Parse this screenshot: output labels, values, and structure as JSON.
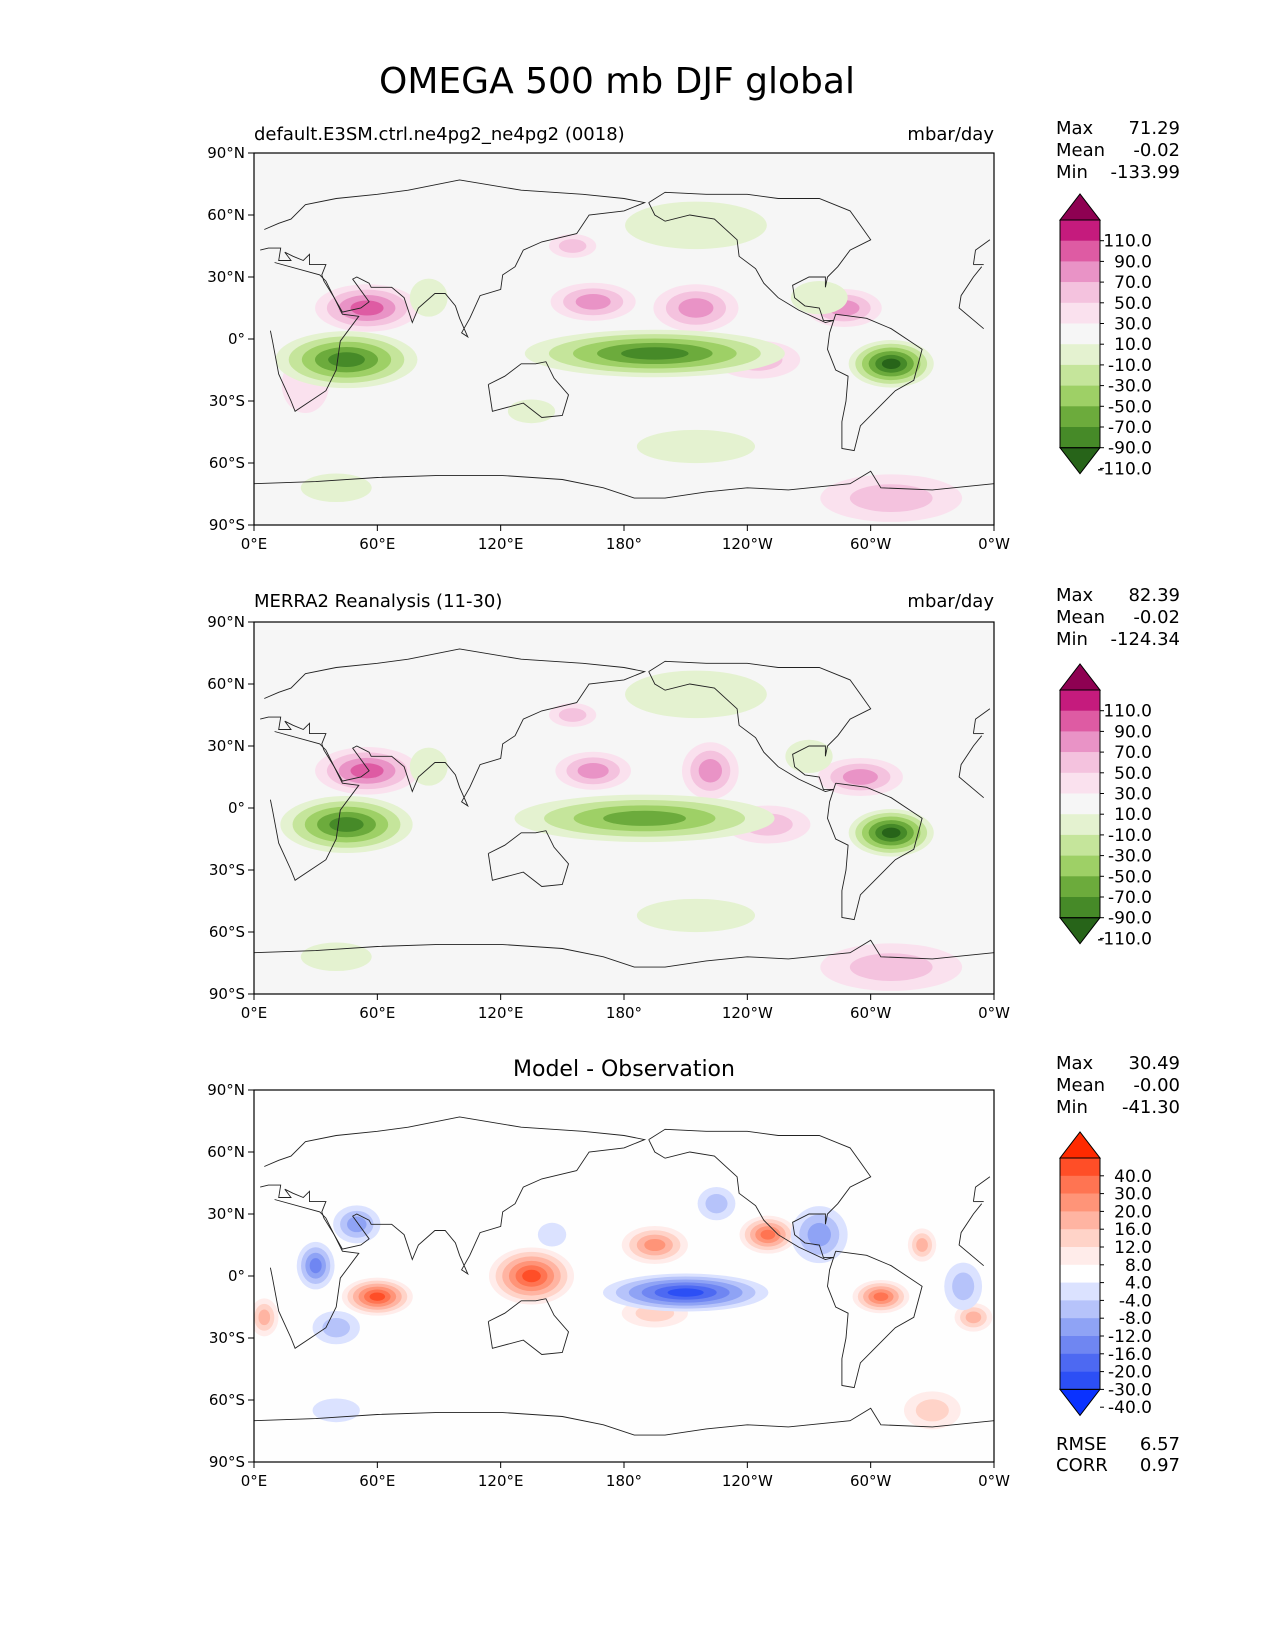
{
  "title": "OMEGA 500 mb DJF global",
  "axes": {
    "lat_ticks": [
      "90°N",
      "60°N",
      "30°N",
      "0°",
      "30°S",
      "60°S",
      "90°S"
    ],
    "lon_ticks": [
      "0°E",
      "60°E",
      "120°E",
      "180°",
      "120°W",
      "60°W",
      "0°W"
    ]
  },
  "panels": [
    {
      "id": "test",
      "title_left": "default.E3SM.ctrl.ne4pg2_ne4pg2 (0018)",
      "title_center": "",
      "units": "mbar/day",
      "stats": {
        "max_label": "Max",
        "max": "71.29",
        "mean_label": "Mean",
        "mean": "-0.02",
        "min_label": "Min",
        "min": "-133.99"
      }
    },
    {
      "id": "ref",
      "title_left": "MERRA2 Reanalysis (11-30)",
      "title_center": "",
      "units": "mbar/day",
      "stats": {
        "max_label": "Max",
        "max": "82.39",
        "mean_label": "Mean",
        "mean": "-0.02",
        "min_label": "Min",
        "min": "-124.34"
      }
    },
    {
      "id": "diff",
      "title_left": "",
      "title_center": "Model - Observation",
      "units": "",
      "stats": {
        "max_label": "Max",
        "max": "30.49",
        "mean_label": "Mean",
        "mean": "-0.00",
        "min_label": "Min",
        "min": "-41.30"
      },
      "metrics": {
        "rmse_label": "RMSE",
        "rmse": "6.57",
        "corr_label": "CORR",
        "corr": "0.97"
      }
    }
  ],
  "colorbars": {
    "main": {
      "labels": [
        "110.0",
        "90.0",
        "70.0",
        "50.0",
        "30.0",
        "10.0",
        "-10.0",
        "-30.0",
        "-50.0",
        "-70.0",
        "-90.0",
        "-110.0"
      ],
      "colors": [
        "#8e0152",
        "#c51b7d",
        "#de5ba3",
        "#e993c6",
        "#f4c2de",
        "#fae1ee",
        "#f6f6f6",
        "#e4f2d0",
        "#c5e59b",
        "#9ed066",
        "#6cab3c",
        "#468a28",
        "#276419"
      ]
    },
    "diff": {
      "labels": [
        "40.0",
        "30.0",
        "20.0",
        "16.0",
        "12.0",
        "8.0",
        "4.0",
        "-4.0",
        "-8.0",
        "-12.0",
        "-16.0",
        "-20.0",
        "-30.0",
        "-40.0"
      ],
      "colors": [
        "#ff2a00",
        "#ff4e27",
        "#ff7452",
        "#ff9478",
        "#ffb4a2",
        "#ffd3c8",
        "#ffecea",
        "#ffffff",
        "#dbe2ff",
        "#b6c3fa",
        "#8fa3f5",
        "#6f86f2",
        "#4d69f2",
        "#2c4ff5",
        "#0a32ff"
      ]
    }
  },
  "fields": {
    "test": [
      {
        "lon": 55,
        "lat": 15,
        "rx": 22,
        "ry": 10,
        "v": 70
      },
      {
        "lon": 165,
        "lat": 18,
        "rx": 18,
        "ry": 8,
        "v": 60
      },
      {
        "lon": 215,
        "lat": 15,
        "rx": 18,
        "ry": 10,
        "v": 55
      },
      {
        "lon": 287,
        "lat": 15,
        "rx": 16,
        "ry": 8,
        "v": 50
      },
      {
        "lon": 155,
        "lat": 45,
        "rx": 10,
        "ry": 5,
        "v": 30
      },
      {
        "lon": 245,
        "lat": -10,
        "rx": 18,
        "ry": 8,
        "v": 30
      },
      {
        "lon": 25,
        "lat": -22,
        "rx": 10,
        "ry": 12,
        "v": 20
      },
      {
        "lon": 45,
        "lat": -10,
        "rx": 30,
        "ry": 12,
        "v": -100
      },
      {
        "lon": 195,
        "lat": -7,
        "rx": 55,
        "ry": 10,
        "v": -110
      },
      {
        "lon": 310,
        "lat": -12,
        "rx": 18,
        "ry": 10,
        "v": -120
      },
      {
        "lon": 85,
        "lat": 20,
        "rx": 8,
        "ry": 8,
        "v": -30
      },
      {
        "lon": 215,
        "lat": 55,
        "rx": 30,
        "ry": 10,
        "v": -20
      },
      {
        "lon": 275,
        "lat": 20,
        "rx": 12,
        "ry": 7,
        "v": -30
      },
      {
        "lon": 40,
        "lat": -72,
        "rx": 15,
        "ry": 6,
        "v": -20
      },
      {
        "lon": 135,
        "lat": -35,
        "rx": 10,
        "ry": 5,
        "v": -20
      },
      {
        "lon": 215,
        "lat": -52,
        "rx": 25,
        "ry": 7,
        "v": -20
      },
      {
        "lon": 310,
        "lat": -77,
        "rx": 30,
        "ry": 10,
        "v": 30
      }
    ],
    "ref": [
      {
        "lon": 55,
        "lat": 18,
        "rx": 22,
        "ry": 10,
        "v": 82
      },
      {
        "lon": 165,
        "lat": 18,
        "rx": 16,
        "ry": 8,
        "v": 60
      },
      {
        "lon": 222,
        "lat": 18,
        "rx": 12,
        "ry": 12,
        "v": 50
      },
      {
        "lon": 295,
        "lat": 15,
        "rx": 18,
        "ry": 8,
        "v": 50
      },
      {
        "lon": 155,
        "lat": 45,
        "rx": 10,
        "ry": 5,
        "v": 30
      },
      {
        "lon": 250,
        "lat": -8,
        "rx": 18,
        "ry": 8,
        "v": 30
      },
      {
        "lon": 45,
        "lat": -8,
        "rx": 28,
        "ry": 12,
        "v": -100
      },
      {
        "lon": 190,
        "lat": -5,
        "rx": 55,
        "ry": 10,
        "v": -90
      },
      {
        "lon": 310,
        "lat": -12,
        "rx": 18,
        "ry": 10,
        "v": -120
      },
      {
        "lon": 85,
        "lat": 20,
        "rx": 8,
        "ry": 8,
        "v": -30
      },
      {
        "lon": 215,
        "lat": 55,
        "rx": 30,
        "ry": 10,
        "v": -20
      },
      {
        "lon": 270,
        "lat": 25,
        "rx": 10,
        "ry": 7,
        "v": -30
      },
      {
        "lon": 40,
        "lat": -72,
        "rx": 15,
        "ry": 6,
        "v": -20
      },
      {
        "lon": 215,
        "lat": -52,
        "rx": 25,
        "ry": 7,
        "v": -20
      },
      {
        "lon": 310,
        "lat": -77,
        "rx": 30,
        "ry": 10,
        "v": 30
      }
    ],
    "diff": [
      {
        "lon": 135,
        "lat": 0,
        "rx": 18,
        "ry": 12,
        "v": 38
      },
      {
        "lon": 60,
        "lat": -10,
        "rx": 15,
        "ry": 8,
        "v": 30
      },
      {
        "lon": 305,
        "lat": -10,
        "rx": 12,
        "ry": 7,
        "v": 28
      },
      {
        "lon": 250,
        "lat": 20,
        "rx": 12,
        "ry": 8,
        "v": 20
      },
      {
        "lon": 195,
        "lat": 15,
        "rx": 14,
        "ry": 8,
        "v": 16
      },
      {
        "lon": 195,
        "lat": -18,
        "rx": 14,
        "ry": 6,
        "v": 10
      },
      {
        "lon": 325,
        "lat": 15,
        "rx": 6,
        "ry": 7,
        "v": 12
      },
      {
        "lon": 350,
        "lat": -20,
        "rx": 8,
        "ry": 6,
        "v": 12
      },
      {
        "lon": 5,
        "lat": -20,
        "rx": 6,
        "ry": 8,
        "v": 12
      },
      {
        "lon": 330,
        "lat": -65,
        "rx": 12,
        "ry": 8,
        "v": 10
      },
      {
        "lon": 210,
        "lat": -8,
        "rx": 35,
        "ry": 8,
        "v": -40
      },
      {
        "lon": 30,
        "lat": 5,
        "rx": 8,
        "ry": 10,
        "v": -20
      },
      {
        "lon": 50,
        "lat": 25,
        "rx": 10,
        "ry": 8,
        "v": -16
      },
      {
        "lon": 275,
        "lat": 20,
        "rx": 12,
        "ry": 12,
        "v": -16
      },
      {
        "lon": 225,
        "lat": 35,
        "rx": 8,
        "ry": 7,
        "v": -12
      },
      {
        "lon": 345,
        "lat": -5,
        "rx": 8,
        "ry": 10,
        "v": -12
      },
      {
        "lon": 40,
        "lat": -25,
        "rx": 10,
        "ry": 7,
        "v": -12
      },
      {
        "lon": 40,
        "lat": -65,
        "rx": 10,
        "ry": 5,
        "v": -8
      },
      {
        "lon": 145,
        "lat": 20,
        "rx": 6,
        "ry": 5,
        "v": -8
      }
    ]
  }
}
